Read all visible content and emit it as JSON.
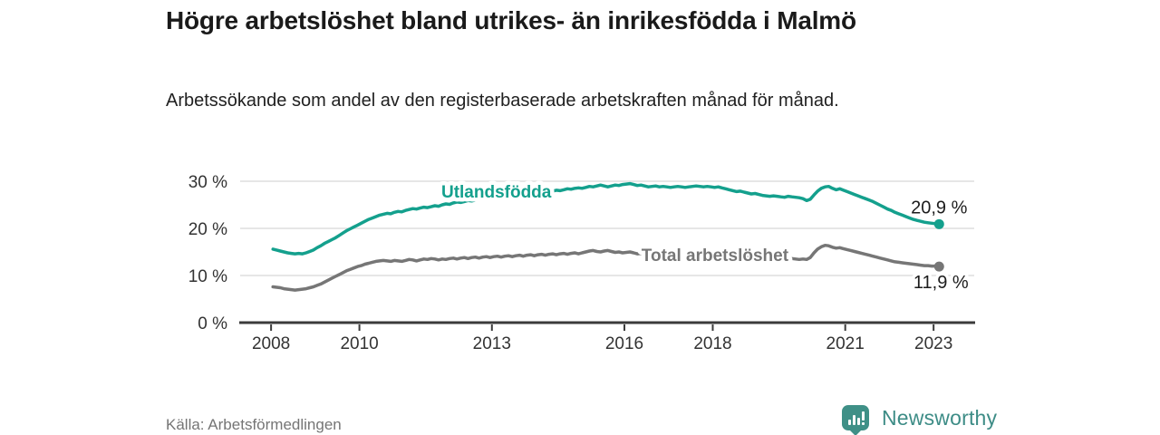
{
  "header": {
    "title": "Högre arbetslöshet bland utrikes- än inrikesfödda i Malmö",
    "subtitle": "Arbetssökande som andel av den registerbaserade arbetskraften månad för månad."
  },
  "footer": {
    "source": "Källa: Arbetsförmedlingen",
    "brand": "Newsworthy"
  },
  "colors": {
    "accent_teal": "#14a08d",
    "series_gray": "#767676",
    "grid": "#dedede",
    "axis": "#3b3b3b",
    "axis_text": "#333333",
    "value_text": "#1c1c1c",
    "source_text": "#757575",
    "brand_teal": "#3d8c86",
    "logo_teal": "#3f9087"
  },
  "chart_data": {
    "type": "line",
    "title": "Högre arbetslöshet bland utrikes- än inrikesfödda i Malmö",
    "subtitle": "Arbetssökande som andel av den registerbaserade arbetskraften månad för månad",
    "unit": "%",
    "grid": true,
    "legend_position": "inline",
    "x_label": "",
    "y_label": "",
    "xlim": [
      2007.3,
      2023.92
    ],
    "ylim": [
      0,
      33
    ],
    "x_ticks": [
      2008,
      2010,
      2013,
      2016,
      2018,
      2021,
      2023
    ],
    "y_ticks": [
      0,
      10,
      20,
      30
    ],
    "y_tick_suffix": " %",
    "x_start": 2008.042,
    "x_step_months": 1,
    "x_range_text": "2008-01 till 2023-02",
    "series": [
      {
        "name": "Utlandsfödda",
        "color": "#14a08d",
        "end_label": "20,9 %",
        "end_value": 20.9,
        "label_pos": {
          "t": 2013.1,
          "v": 27.9
        },
        "end_label_dx": 0,
        "end_label_dy": -12,
        "values": [
          15.6,
          15.4,
          15.2,
          15.0,
          14.8,
          14.7,
          14.6,
          14.7,
          14.6,
          14.8,
          15.1,
          15.4,
          15.9,
          16.3,
          16.8,
          17.2,
          17.6,
          18.0,
          18.5,
          19.0,
          19.5,
          19.9,
          20.3,
          20.7,
          21.1,
          21.5,
          21.9,
          22.2,
          22.5,
          22.8,
          23.0,
          23.2,
          23.1,
          23.4,
          23.6,
          23.5,
          23.8,
          24.0,
          24.2,
          24.1,
          24.3,
          24.5,
          24.4,
          24.6,
          24.8,
          24.7,
          25.0,
          25.2,
          25.1,
          25.4,
          25.6,
          25.5,
          25.7,
          25.9,
          25.8,
          26.0,
          26.2,
          26.1,
          26.3,
          26.5,
          26.4,
          26.6,
          26.8,
          26.7,
          26.9,
          27.1,
          27.0,
          27.2,
          27.3,
          27.2,
          27.4,
          27.5,
          27.4,
          27.6,
          27.8,
          27.7,
          27.9,
          28.1,
          28.0,
          28.2,
          28.4,
          28.3,
          28.5,
          28.6,
          28.5,
          28.7,
          28.9,
          28.8,
          29.0,
          29.2,
          29.0,
          28.8,
          29.0,
          29.2,
          29.1,
          29.3,
          29.4,
          29.5,
          29.3,
          29.1,
          29.2,
          29.0,
          28.8,
          28.9,
          29.0,
          28.8,
          28.9,
          28.8,
          28.7,
          28.8,
          28.9,
          28.8,
          28.7,
          28.8,
          28.9,
          29.0,
          28.9,
          28.8,
          28.9,
          28.8,
          28.7,
          28.8,
          28.6,
          28.4,
          28.2,
          28.0,
          27.8,
          27.9,
          27.7,
          27.5,
          27.3,
          27.4,
          27.2,
          27.0,
          26.9,
          26.8,
          26.9,
          26.8,
          26.7,
          26.6,
          26.8,
          26.7,
          26.6,
          26.5,
          26.3,
          25.9,
          26.2,
          27.1,
          27.9,
          28.5,
          28.8,
          28.9,
          28.5,
          28.2,
          28.4,
          28.1,
          27.8,
          27.5,
          27.2,
          26.9,
          26.6,
          26.3,
          26.0,
          25.7,
          25.3,
          24.9,
          24.5,
          24.1,
          23.8,
          23.4,
          23.1,
          22.8,
          22.5,
          22.2,
          21.9,
          21.7,
          21.5,
          21.3,
          21.2,
          21.1,
          21.0,
          20.9
        ]
      },
      {
        "name": "Total arbetslöshet",
        "color": "#767676",
        "end_label": "11,9 %",
        "end_value": 11.9,
        "label_pos": {
          "t": 2018.05,
          "v": 14.4
        },
        "end_label_dx": 2,
        "end_label_dy": 24,
        "values": [
          7.6,
          7.5,
          7.4,
          7.2,
          7.1,
          7.0,
          6.9,
          7.0,
          7.1,
          7.2,
          7.4,
          7.6,
          7.9,
          8.2,
          8.6,
          9.0,
          9.4,
          9.8,
          10.2,
          10.6,
          11.0,
          11.3,
          11.6,
          11.9,
          12.1,
          12.4,
          12.6,
          12.8,
          13.0,
          13.1,
          13.2,
          13.1,
          13.0,
          13.2,
          13.1,
          13.0,
          13.2,
          13.4,
          13.3,
          13.1,
          13.3,
          13.5,
          13.4,
          13.6,
          13.5,
          13.3,
          13.5,
          13.4,
          13.6,
          13.7,
          13.5,
          13.7,
          13.8,
          13.6,
          13.8,
          13.9,
          13.7,
          13.9,
          14.0,
          13.8,
          14.0,
          14.1,
          13.9,
          14.1,
          14.2,
          14.0,
          14.2,
          14.3,
          14.1,
          14.3,
          14.4,
          14.2,
          14.4,
          14.5,
          14.3,
          14.5,
          14.6,
          14.4,
          14.6,
          14.7,
          14.5,
          14.7,
          14.8,
          14.6,
          14.8,
          15.0,
          15.2,
          15.3,
          15.1,
          15.0,
          15.2,
          15.3,
          15.1,
          14.9,
          15.0,
          14.8,
          14.9,
          15.0,
          14.8,
          14.6,
          14.7,
          14.5,
          14.6,
          14.7,
          14.5,
          14.6,
          14.5,
          14.4,
          14.5,
          14.6,
          14.4,
          14.3,
          14.4,
          14.5,
          14.4,
          14.3,
          14.4,
          14.3,
          14.2,
          14.1,
          14.2,
          14.3,
          14.1,
          14.0,
          13.9,
          14.0,
          13.9,
          13.8,
          13.9,
          13.8,
          13.7,
          13.6,
          13.7,
          13.6,
          13.5,
          13.6,
          13.5,
          13.6,
          13.5,
          13.4,
          13.5,
          13.6,
          13.5,
          13.4,
          13.5,
          13.4,
          13.8,
          14.8,
          15.6,
          16.1,
          16.4,
          16.3,
          16.0,
          15.8,
          15.9,
          15.7,
          15.5,
          15.3,
          15.1,
          14.9,
          14.7,
          14.5,
          14.3,
          14.1,
          13.9,
          13.7,
          13.5,
          13.3,
          13.1,
          12.9,
          12.8,
          12.7,
          12.6,
          12.5,
          12.4,
          12.3,
          12.2,
          12.1,
          12.1,
          12.0,
          12.0,
          11.9
        ]
      }
    ]
  }
}
